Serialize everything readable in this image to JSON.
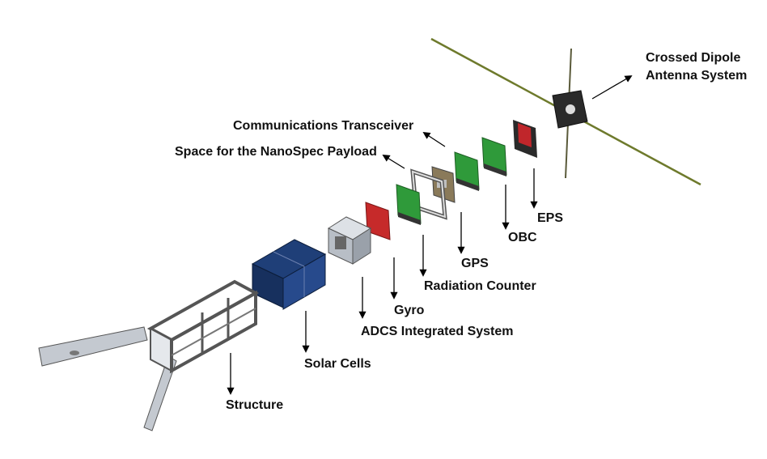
{
  "labels": {
    "antenna_line1": "Crossed Dipole",
    "antenna_line2": "Antenna System",
    "comms": "Communications Transceiver",
    "nanospec": "Space for the NanoSpec Payload",
    "eps": "EPS",
    "obc": "OBC",
    "gps": "GPS",
    "radiation": "Radiation Counter",
    "gyro": "Gyro",
    "adcs": "ADCS Integrated System",
    "solar": "Solar Cells",
    "structure": "Structure"
  },
  "colors": {
    "pcb_green": "#2f9a3a",
    "eps_red": "#c0262b",
    "adcs_red": "#c62a2a",
    "solar_blue": "#1f3f78",
    "structure_grey": "#9aa1aa",
    "antenna_olive": "#6e7a2c",
    "arrow": "#000000"
  }
}
